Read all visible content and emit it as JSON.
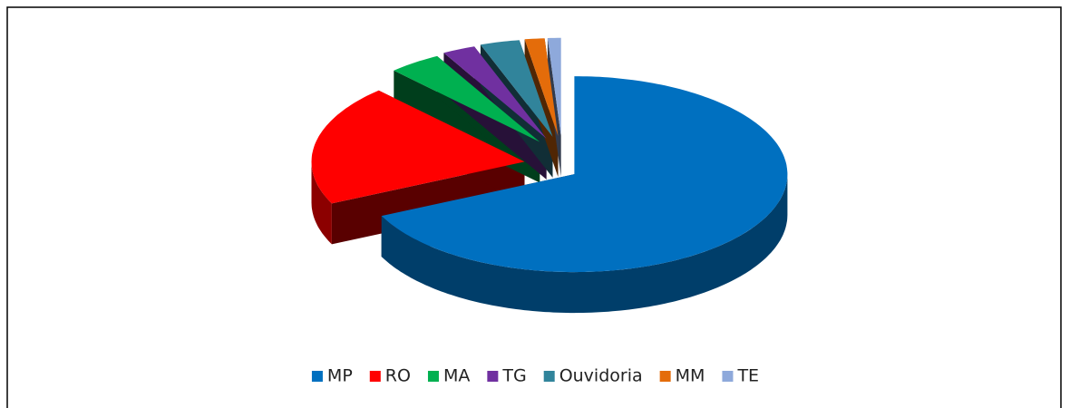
{
  "chart_data": {
    "type": "pie3d",
    "series": [
      {
        "name": "MP",
        "color": "#0070c0",
        "values": [
          68
        ]
      },
      {
        "name": "RO",
        "color": "#ff0000",
        "values": [
          20
        ]
      },
      {
        "name": "MA",
        "color": "#00b050",
        "values": [
          4
        ]
      },
      {
        "name": "TG",
        "color": "#7030a0",
        "values": [
          2.5
        ]
      },
      {
        "name": "Ouvidoria",
        "color": "#31849b",
        "values": [
          3
        ]
      },
      {
        "name": "MM",
        "color": "#e46c0a",
        "values": [
          1.5
        ]
      },
      {
        "name": "TE",
        "color": "#8ea9db",
        "values": [
          1
        ]
      }
    ],
    "legend": "bottom"
  }
}
